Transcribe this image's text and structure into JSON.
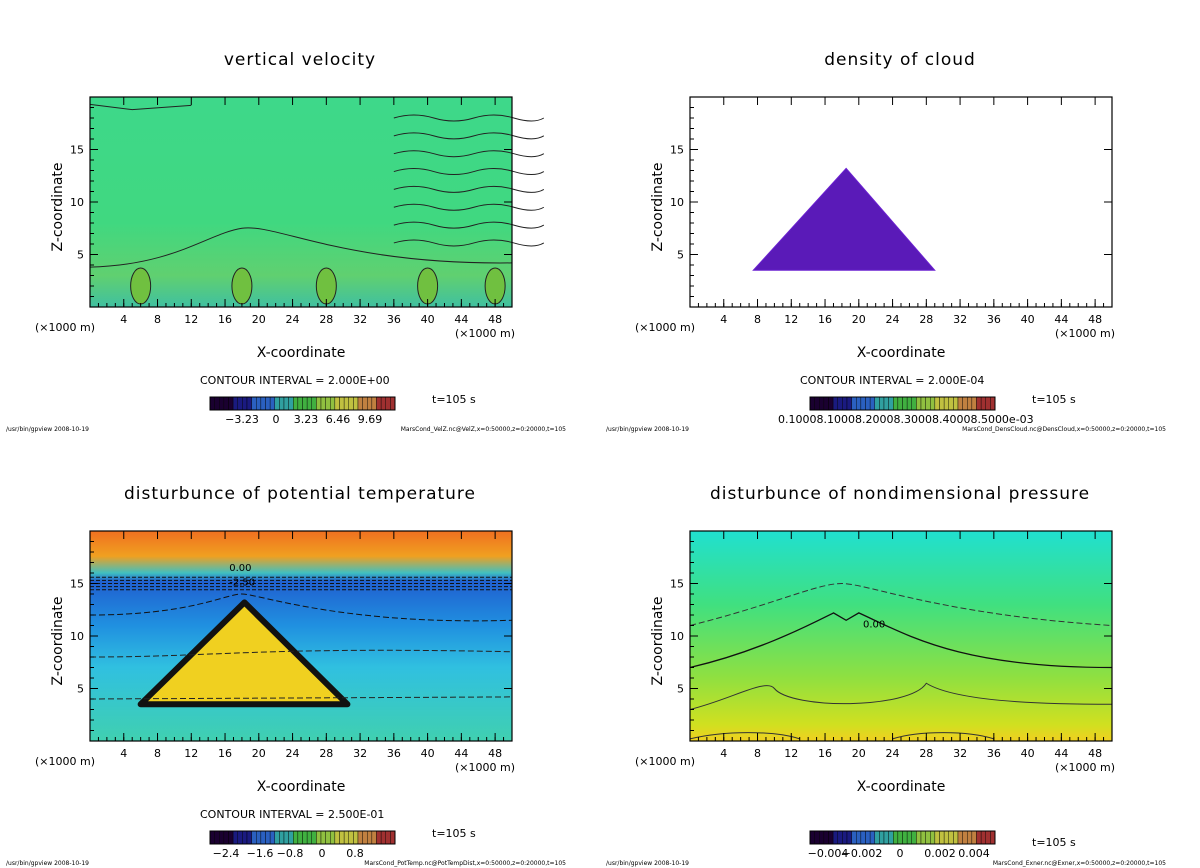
{
  "chart_data": [
    {
      "type": "heatmap",
      "title": "vertical velocity",
      "xlabel": "X-coordinate",
      "ylabel": "Z-coordinate",
      "x_unit": "(×1000 m)",
      "xlim": [
        0,
        50
      ],
      "ylim": [
        0,
        20
      ],
      "xticks": [
        "4",
        "8",
        "12",
        "16",
        "20",
        "24",
        "28",
        "32",
        "36",
        "40",
        "44",
        "48"
      ],
      "yticks": [
        "5",
        "10",
        "15"
      ],
      "contour_interval": "CONTOUR INTERVAL = 2.000E+00",
      "colorbar_ticks": [
        "−3.23",
        "0",
        "3.23",
        "6.46",
        "9.69"
      ],
      "time": "t=105 s",
      "program": "/usr/bin/gpview  2008-10-19",
      "source": "MarsCond_VelZ.nc@VelZ,x=0:50000,z=0:20000,t=105",
      "field": "velz"
    },
    {
      "type": "heatmap",
      "title": "density of cloud",
      "xlabel": "X-coordinate",
      "ylabel": "Z-coordinate",
      "x_unit": "(×1000 m)",
      "xlim": [
        0,
        50
      ],
      "ylim": [
        0,
        20
      ],
      "xticks": [
        "4",
        "8",
        "12",
        "16",
        "20",
        "24",
        "28",
        "32",
        "36",
        "40",
        "44",
        "48"
      ],
      "yticks": [
        "5",
        "10",
        "15"
      ],
      "contour_interval": "CONTOUR INTERVAL = 2.000E-04",
      "colorbar_ticks": [
        "0.1000e-03",
        "0.2000e-03",
        "0.3000e-03",
        "0.4000e-03",
        "0.5000e-03"
      ],
      "colorbar_label_overlap": "0.10008.10008.20008.30008.40008.5000e-03",
      "time": "t=105 s",
      "program": "/usr/bin/gpview  2008-10-19",
      "source": "MarsCond_DensCloud.nc@DensCloud,x=0:50000,z=0:20000,t=105",
      "field": "cloud"
    },
    {
      "type": "heatmap",
      "title": "disturbunce of potential temperature",
      "xlabel": "X-coordinate",
      "ylabel": "Z-coordinate",
      "x_unit": "(×1000 m)",
      "xlim": [
        0,
        50
      ],
      "ylim": [
        0,
        20
      ],
      "xticks": [
        "4",
        "8",
        "12",
        "16",
        "20",
        "24",
        "28",
        "32",
        "36",
        "40",
        "44",
        "48"
      ],
      "yticks": [
        "5",
        "10",
        "15"
      ],
      "contour_interval": "CONTOUR INTERVAL = 2.500E-01",
      "colorbar_ticks": [
        "−2.4",
        "−1.6",
        "−0.8",
        "0",
        "0.8"
      ],
      "contour_labels": [
        "0.00",
        "-2.50"
      ],
      "time": "t=105 s",
      "program": "/usr/bin/gpview  2008-10-19",
      "source": "MarsCond_PotTemp.nc@PotTempDist,x=0:50000,z=0:20000,t=105",
      "field": "ptemp"
    },
    {
      "type": "heatmap",
      "title": "disturbunce of nondimensional pressure",
      "xlabel": "X-coordinate",
      "ylabel": "Z-coordinate",
      "x_unit": "(×1000 m)",
      "xlim": [
        0,
        50
      ],
      "ylim": [
        0,
        20
      ],
      "xticks": [
        "4",
        "8",
        "12",
        "16",
        "20",
        "24",
        "28",
        "32",
        "36",
        "40",
        "44",
        "48"
      ],
      "yticks": [
        "5",
        "10",
        "15"
      ],
      "contour_interval": "",
      "colorbar_ticks": [
        "−0.004",
        "−0.002",
        "0",
        "0.002",
        "0.004"
      ],
      "contour_labels": [
        "0.00"
      ],
      "time": "t=105 s",
      "program": "/usr/bin/gpview  2008-10-19",
      "source": "MarsCond_Exner.nc@Exner,x=0:50000,z=0:20000,t=105",
      "field": "exner"
    }
  ],
  "colors": {
    "colorbar": [
      "#1a0030",
      "#1a1a80",
      "#2a60c0",
      "#30a0a0",
      "#40b040",
      "#90c040",
      "#c0c040",
      "#c08040",
      "#a03030"
    ]
  }
}
